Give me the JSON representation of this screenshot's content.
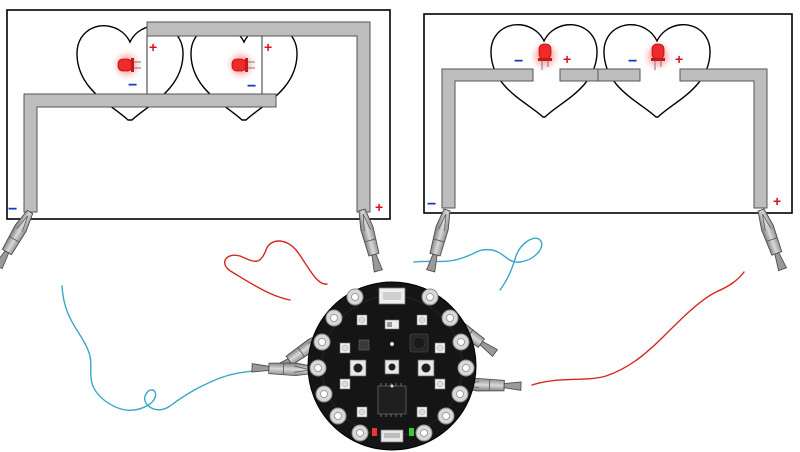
{
  "diagram": {
    "polarity": {
      "positive": "+",
      "negative": "−"
    },
    "colors": {
      "led": "#ee2a2a",
      "led_glow": "#ff6a6a",
      "copper_tape": "#bdbdbd",
      "copper_tape_stroke": "#555555",
      "wire_red": "#d5281e",
      "wire_blue": "#3aa7c9",
      "positive_mark": "#e0101b",
      "negative_mark": "#1836c8",
      "board": "#151515",
      "pad": "#d8d8d8"
    },
    "left_card": {
      "circuit": "parallel",
      "led_count": 2
    },
    "right_card": {
      "circuit": "series",
      "led_count": 2
    },
    "board_icons": [
      "alligator-clip-icon",
      "led-icon",
      "heart-outline-icon",
      "circuit-board-icon"
    ]
  }
}
